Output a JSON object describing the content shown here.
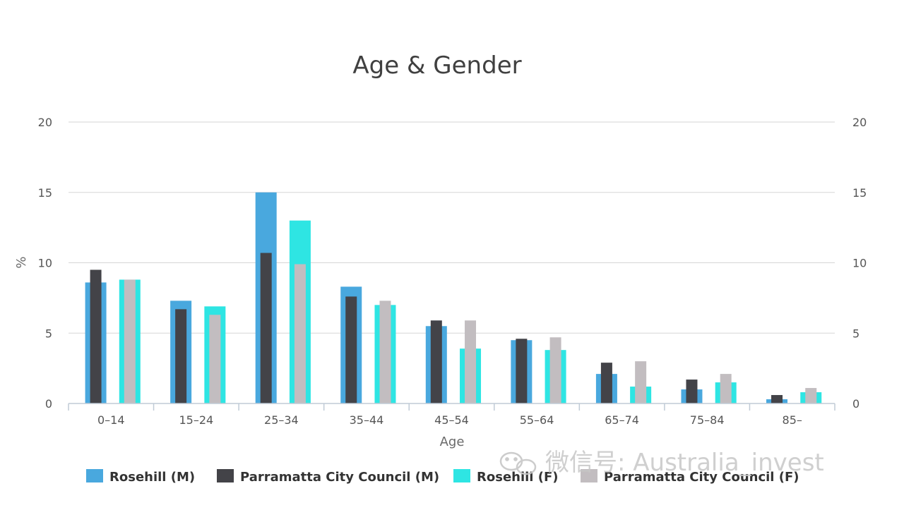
{
  "chart_data": {
    "type": "bar",
    "title": "Age & Gender",
    "xlabel": "Age",
    "ylabel": "%",
    "ylim": [
      0,
      20
    ],
    "yticks": [
      0,
      5,
      10,
      15,
      20
    ],
    "categories": [
      "0–14",
      "15–24",
      "25–34",
      "35–44",
      "45–54",
      "55–64",
      "65–74",
      "75–84",
      "85–"
    ],
    "series": [
      {
        "name": "Rosehill (M)",
        "color": "#49a8de",
        "values": [
          8.6,
          7.3,
          15.0,
          8.3,
          5.5,
          4.5,
          2.1,
          1.0,
          0.3
        ]
      },
      {
        "name": "Parramatta City Council (M)",
        "color": "#434348",
        "values": [
          9.5,
          6.7,
          10.7,
          7.6,
          5.9,
          4.6,
          2.9,
          1.7,
          0.6
        ]
      },
      {
        "name": "Rosehill (F)",
        "color": "#2ee5e3",
        "values": [
          8.8,
          6.9,
          13.0,
          7.0,
          3.9,
          3.8,
          1.2,
          1.5,
          0.8
        ]
      },
      {
        "name": "Parramatta City Council (F)",
        "color": "#c2bdc0",
        "values": [
          8.8,
          6.3,
          9.9,
          7.3,
          5.9,
          4.7,
          3.0,
          2.1,
          1.1
        ]
      }
    ],
    "legend_position": "bottom"
  },
  "watermark": {
    "text": "微信号: Australia_invest",
    "icon": "wechat-icon"
  }
}
